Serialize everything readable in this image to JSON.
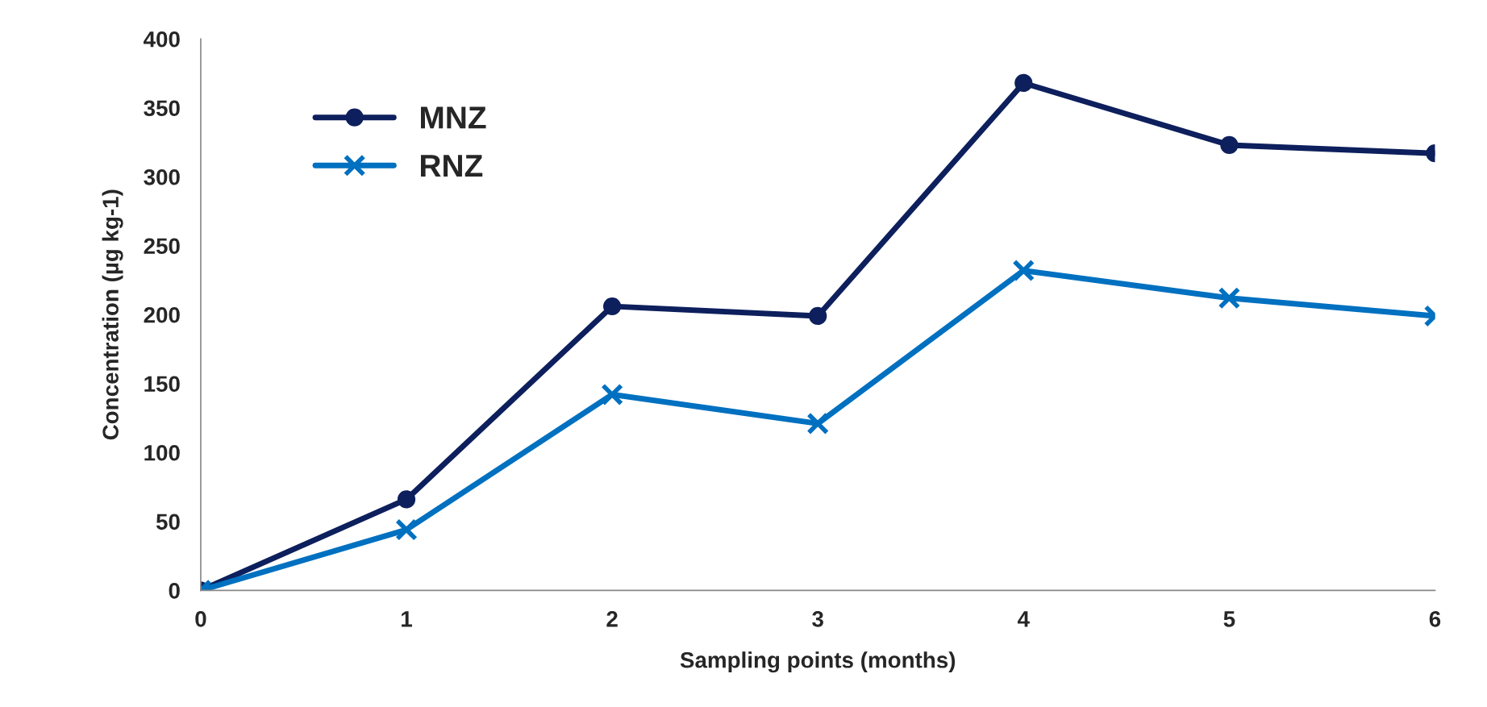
{
  "chart_data": {
    "type": "line",
    "xlabel": "Sampling points (months)",
    "ylabel": "Concentration (µg kg-1)",
    "categories": [
      "0",
      "1",
      "2",
      "3",
      "4",
      "5",
      "6"
    ],
    "series": [
      {
        "name": "MNZ",
        "color": "#0d1f5c",
        "marker": "circle",
        "values": [
          0,
          66,
          206,
          199,
          368,
          323,
          317
        ]
      },
      {
        "name": "RNZ",
        "color": "#0070c0",
        "marker": "cross",
        "values": [
          0,
          44,
          142,
          121,
          232,
          212,
          199
        ]
      }
    ],
    "ylim": [
      0,
      400
    ],
    "yticks": [
      0,
      50,
      100,
      150,
      200,
      250,
      300,
      350,
      400
    ],
    "grid": false,
    "legend": "top left",
    "line_style": "solid"
  }
}
